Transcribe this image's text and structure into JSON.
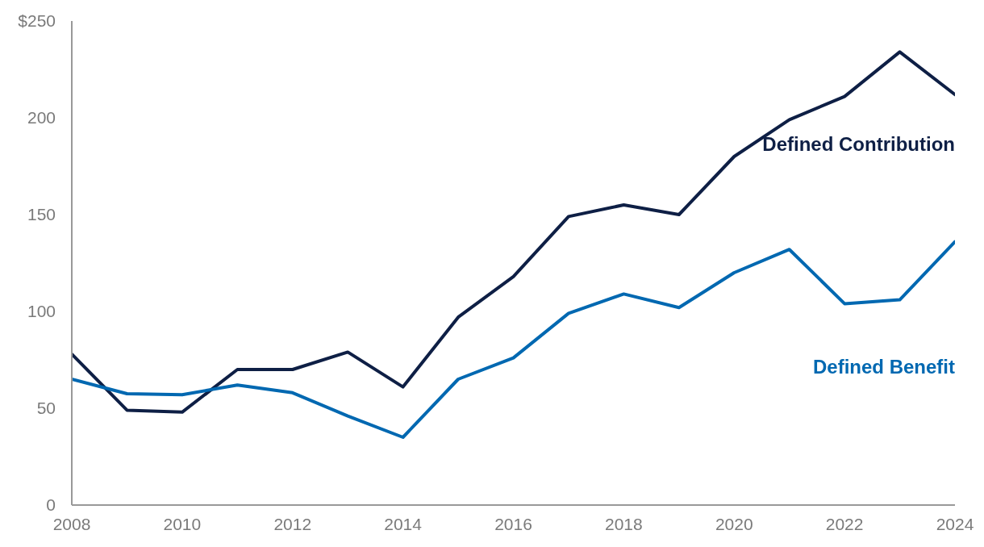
{
  "chart_data": {
    "type": "line",
    "x": [
      2008,
      2009,
      2010,
      2011,
      2012,
      2013,
      2014,
      2015,
      2016,
      2017,
      2018,
      2019,
      2020,
      2021,
      2022,
      2023,
      2024
    ],
    "series": [
      {
        "name": "Defined Contribution",
        "color": "#0e1f45",
        "values": [
          78,
          49,
          48,
          70,
          70,
          79,
          61,
          97,
          118,
          149,
          155,
          150,
          180,
          199,
          211,
          234,
          212
        ]
      },
      {
        "name": "Defined Benefit",
        "color": "#0068b1",
        "values": [
          65,
          57.5,
          57,
          62,
          58,
          46,
          35,
          65,
          76,
          99,
          109,
          102,
          120,
          132,
          104,
          106,
          136
        ]
      }
    ],
    "xlim": [
      2008,
      2024
    ],
    "xticks": [
      2008,
      2010,
      2012,
      2014,
      2016,
      2018,
      2020,
      2022,
      2024
    ],
    "ylim": [
      0,
      250
    ],
    "yticks": [
      0,
      50,
      100,
      150,
      200,
      {
        "value": 250,
        "label": "$250"
      }
    ],
    "grid": false,
    "legend": false,
    "marker": "none",
    "line_style": "solid"
  }
}
